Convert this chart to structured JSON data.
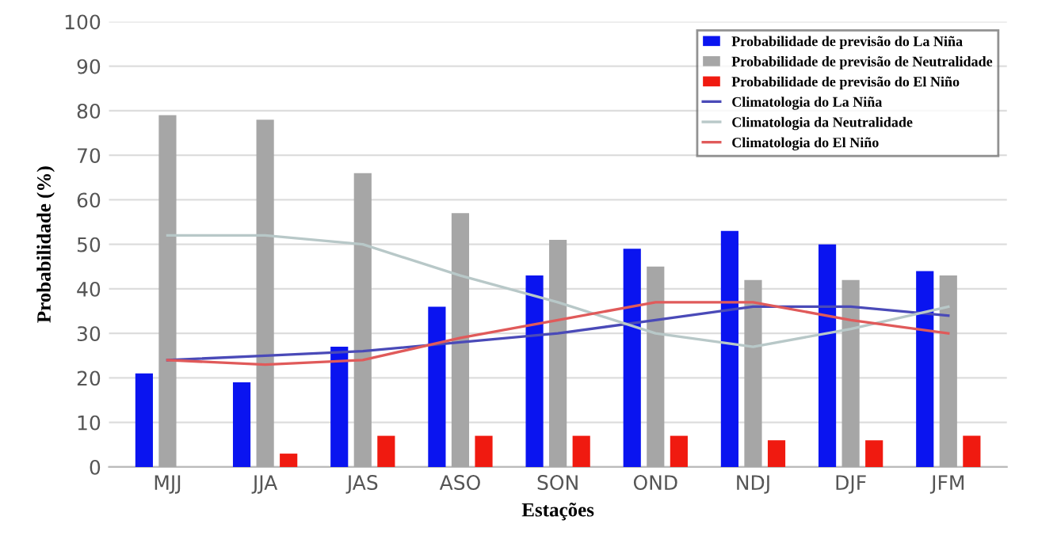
{
  "chart_data": {
    "type": "bar",
    "xlabel": "Estações",
    "ylabel": "Probabilidade (%)",
    "categories": [
      "MJJ",
      "JJA",
      "JAS",
      "ASO",
      "SON",
      "OND",
      "NDJ",
      "DJF",
      "JFM"
    ],
    "series": [
      {
        "name": "Probabilidade de previsão do La Niña",
        "color": "#0a14f0",
        "values": [
          21,
          19,
          27,
          36,
          43,
          49,
          53,
          50,
          44
        ]
      },
      {
        "name": "Probabilidade de previsão de Neutralidade",
        "color": "#a6a6a6",
        "values": [
          79,
          78,
          66,
          57,
          51,
          45,
          42,
          42,
          43
        ]
      },
      {
        "name": "Probabilidade de previsão do El Niño",
        "color": "#f01a10",
        "values": [
          0,
          3,
          7,
          7,
          7,
          7,
          6,
          6,
          7
        ]
      },
      {
        "name": "Climatologia do La Niña",
        "type": "line",
        "color": "#4a4ab8",
        "values": [
          24,
          25,
          26,
          28,
          30,
          33,
          36,
          36,
          34
        ]
      },
      {
        "name": "Climatologia da Neutralidade",
        "type": "line",
        "color": "#b8c8c8",
        "values": [
          52,
          52,
          50,
          43,
          37,
          30,
          27,
          31,
          36
        ]
      },
      {
        "name": "Climatologia do El Niño",
        "type": "line",
        "color": "#e05a5a",
        "values": [
          24,
          23,
          24,
          29,
          33,
          37,
          37,
          33,
          30
        ]
      }
    ],
    "ylim": [
      0,
      100
    ],
    "yticks": [
      0,
      10,
      20,
      30,
      40,
      50,
      60,
      70,
      80,
      90,
      100
    ],
    "grid": "y",
    "legend": "top right"
  }
}
